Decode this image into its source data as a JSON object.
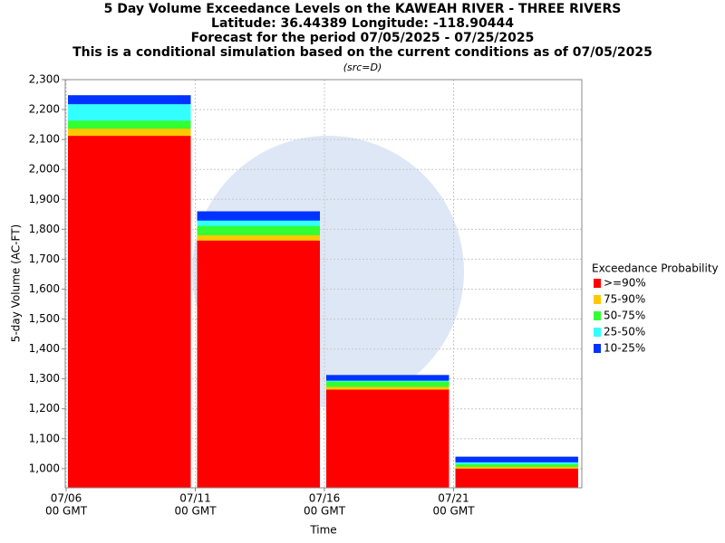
{
  "chart_data": {
    "type": "bar",
    "title": [
      "5 Day Volume Exceedance Levels on the KAWEAH RIVER - THREE RIVERS",
      "Latitude: 36.44389 Longitude: -118.90444",
      "Forecast for the period 07/05/2025 - 07/25/2025",
      "This is a conditional simulation based on the current conditions as of 07/05/2025"
    ],
    "subtitle": "(src=D)",
    "x_label": "Time",
    "y_label": "5-day Volume (AC-FT)",
    "legend_title": "Exceedance Probability",
    "categories": [
      [
        "07/06",
        "00 GMT"
      ],
      [
        "07/11",
        "00 GMT"
      ],
      [
        "07/16",
        "00 GMT"
      ],
      [
        "07/21",
        "00 GMT"
      ]
    ],
    "series": [
      {
        "name": ">=90%",
        "color": "#ff0000",
        "values": [
          2112,
          1762,
          1264,
          1000
        ]
      },
      {
        "name": "75-90%",
        "color": "#ffc800",
        "values": [
          2136,
          1780,
          1273,
          1006
        ]
      },
      {
        "name": "50-75%",
        "color": "#33ff33",
        "values": [
          2163,
          1811,
          1291,
          1015
        ]
      },
      {
        "name": "25-50%",
        "color": "#33ffff",
        "values": [
          2218,
          1829,
          1294,
          1021
        ]
      },
      {
        "name": "10-25%",
        "color": "#0033ff",
        "values": [
          2248,
          1860,
          1313,
          1040
        ]
      }
    ],
    "ylim": [
      936,
      2300
    ],
    "yticks": [
      {
        "value": 1000,
        "label": "1,000"
      },
      {
        "value": 1100,
        "label": "1,100"
      },
      {
        "value": 1200,
        "label": "1,200"
      },
      {
        "value": 1300,
        "label": "1,300"
      },
      {
        "value": 1400,
        "label": "1,400"
      },
      {
        "value": 1500,
        "label": "1,500"
      },
      {
        "value": 1600,
        "label": "1,600"
      },
      {
        "value": 1700,
        "label": "1,700"
      },
      {
        "value": 1800,
        "label": "1,800"
      },
      {
        "value": 1900,
        "label": "1,900"
      },
      {
        "value": 2000,
        "label": "2,000"
      },
      {
        "value": 2100,
        "label": "2,100"
      },
      {
        "value": 2200,
        "label": "2,200"
      },
      {
        "value": 2300,
        "label": "2,300"
      }
    ],
    "grid": true
  }
}
